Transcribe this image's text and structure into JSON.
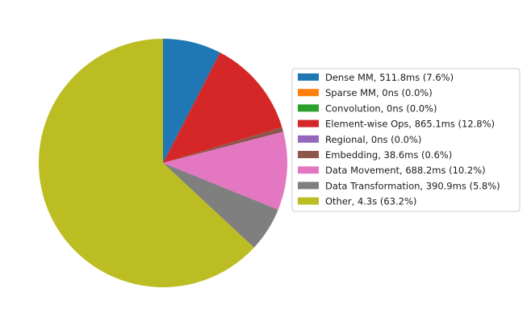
{
  "chart_data": {
    "type": "pie",
    "title": "",
    "start_angle_deg": 90,
    "direction": "clockwise",
    "legend_placement": "right",
    "slices": [
      {
        "label": "Dense MM, 511.8ms (7.6%)",
        "value": 7.6,
        "color": "#1f77b4"
      },
      {
        "label": "Sparse MM, 0ns (0.0%)",
        "value": 0.0,
        "color": "#ff7f0e"
      },
      {
        "label": "Convolution, 0ns (0.0%)",
        "value": 0.0,
        "color": "#2ca02c"
      },
      {
        "label": "Element-wise Ops, 865.1ms (12.8%)",
        "value": 12.8,
        "color": "#d62728"
      },
      {
        "label": "Regional, 0ns (0.0%)",
        "value": 0.0,
        "color": "#9467bd"
      },
      {
        "label": "Embedding, 38.6ms (0.6%)",
        "value": 0.6,
        "color": "#8c564b"
      },
      {
        "label": "Data Movement, 688.2ms (10.2%)",
        "value": 10.2,
        "color": "#e377c2"
      },
      {
        "label": "Data Transformation, 390.9ms (5.8%)",
        "value": 5.8,
        "color": "#7f7f7f"
      },
      {
        "label": "Other, 4.3s (63.2%)",
        "value": 63.2,
        "color": "#bcbd22"
      }
    ]
  }
}
